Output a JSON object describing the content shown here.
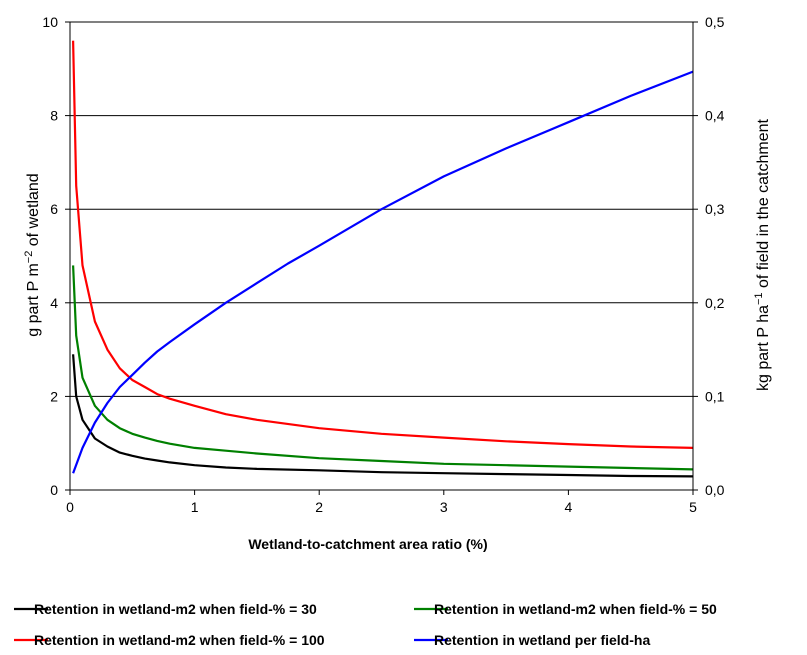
{
  "chart_data": {
    "type": "line",
    "xlabel": "Wetland-to-catchment  area ratio (%)",
    "ylabel_left": {
      "pre": "g part P m",
      "sup": "−2",
      "post": " of wetland"
    },
    "ylabel_right": {
      "pre": "kg part P ha",
      "sup": "−1",
      "post": " of field in the catchment"
    },
    "xlim": [
      0,
      5
    ],
    "ylim_left": [
      0,
      10
    ],
    "ylim_right": [
      0,
      0.5
    ],
    "x_ticks": [
      "0",
      "1",
      "2",
      "3",
      "4",
      "5"
    ],
    "y_left_ticks": [
      "0",
      "2",
      "4",
      "6",
      "8",
      "10"
    ],
    "y_right_ticks": [
      "0,0",
      "0,1",
      "0,2",
      "0,3",
      "0,4",
      "0,5"
    ],
    "grid": "horizontal",
    "legend_position": "bottom",
    "series": [
      {
        "name": "Retention in wetland-m2 when field-% = 30",
        "axis": "left",
        "color": "#000000",
        "points": [
          [
            0.025,
            2.9
          ],
          [
            0.05,
            2.0
          ],
          [
            0.1,
            1.5
          ],
          [
            0.2,
            1.1
          ],
          [
            0.3,
            0.93
          ],
          [
            0.4,
            0.8
          ],
          [
            0.5,
            0.73
          ],
          [
            0.6,
            0.67
          ],
          [
            0.7,
            0.63
          ],
          [
            0.8,
            0.59
          ],
          [
            1.0,
            0.53
          ],
          [
            1.25,
            0.48
          ],
          [
            1.5,
            0.45
          ],
          [
            2.0,
            0.42
          ],
          [
            2.5,
            0.38
          ],
          [
            3.0,
            0.36
          ],
          [
            3.5,
            0.34
          ],
          [
            4.0,
            0.32
          ],
          [
            4.5,
            0.3
          ],
          [
            5.0,
            0.29
          ]
        ]
      },
      {
        "name": "Retention in wetland-m2 when field-% = 50",
        "axis": "left",
        "color": "#008000",
        "points": [
          [
            0.025,
            4.8
          ],
          [
            0.05,
            3.3
          ],
          [
            0.1,
            2.4
          ],
          [
            0.2,
            1.8
          ],
          [
            0.3,
            1.5
          ],
          [
            0.4,
            1.32
          ],
          [
            0.5,
            1.2
          ],
          [
            0.6,
            1.12
          ],
          [
            0.7,
            1.05
          ],
          [
            0.8,
            0.99
          ],
          [
            1.0,
            0.9
          ],
          [
            1.25,
            0.84
          ],
          [
            1.5,
            0.78
          ],
          [
            2.0,
            0.68
          ],
          [
            2.5,
            0.62
          ],
          [
            3.0,
            0.56
          ],
          [
            3.5,
            0.53
          ],
          [
            4.0,
            0.5
          ],
          [
            4.5,
            0.47
          ],
          [
            5.0,
            0.44
          ]
        ]
      },
      {
        "name": "Retention in wetland-m2 when field-% = 100",
        "axis": "left",
        "color": "#ff0000",
        "points": [
          [
            0.025,
            9.6
          ],
          [
            0.05,
            6.5
          ],
          [
            0.1,
            4.8
          ],
          [
            0.2,
            3.6
          ],
          [
            0.3,
            3.0
          ],
          [
            0.4,
            2.6
          ],
          [
            0.5,
            2.35
          ],
          [
            0.6,
            2.2
          ],
          [
            0.7,
            2.05
          ],
          [
            0.8,
            1.95
          ],
          [
            1.0,
            1.8
          ],
          [
            1.25,
            1.62
          ],
          [
            1.5,
            1.5
          ],
          [
            2.0,
            1.32
          ],
          [
            2.5,
            1.2
          ],
          [
            3.0,
            1.12
          ],
          [
            3.5,
            1.04
          ],
          [
            4.0,
            0.98
          ],
          [
            4.5,
            0.93
          ],
          [
            5.0,
            0.9
          ]
        ]
      },
      {
        "name": "Retention in wetland per field-ha",
        "axis": "right",
        "color": "#0000ff",
        "points": [
          [
            0.025,
            0.018
          ],
          [
            0.1,
            0.045
          ],
          [
            0.2,
            0.072
          ],
          [
            0.3,
            0.093
          ],
          [
            0.4,
            0.11
          ],
          [
            0.5,
            0.123
          ],
          [
            0.6,
            0.136
          ],
          [
            0.7,
            0.148
          ],
          [
            0.8,
            0.158
          ],
          [
            1.0,
            0.177
          ],
          [
            1.25,
            0.2
          ],
          [
            1.5,
            0.221
          ],
          [
            1.75,
            0.242
          ],
          [
            2.0,
            0.261
          ],
          [
            2.5,
            0.3
          ],
          [
            3.0,
            0.335
          ],
          [
            3.5,
            0.365
          ],
          [
            4.0,
            0.393
          ],
          [
            4.5,
            0.421
          ],
          [
            5.0,
            0.447
          ]
        ]
      }
    ]
  }
}
